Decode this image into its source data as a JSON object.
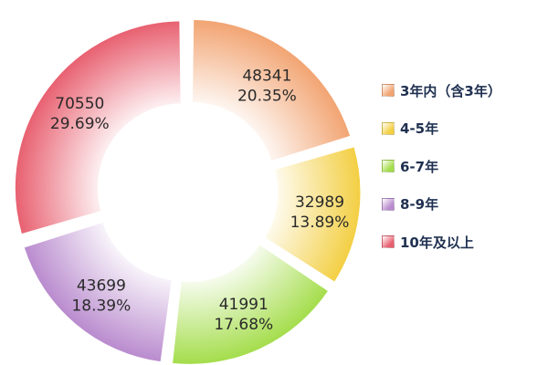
{
  "chart_data": {
    "type": "pie",
    "donut": true,
    "categories": [
      "3年内（含3年）",
      "4-5年",
      "6-7年",
      "8-9年",
      "10年及以上"
    ],
    "values": [
      48341,
      32989,
      41991,
      43699,
      70550
    ],
    "percentages": [
      "20.35%",
      "13.89%",
      "17.68%",
      "18.39%",
      "29.69%"
    ],
    "value_labels": [
      "48341",
      "32989",
      "41991",
      "43699",
      "70550"
    ],
    "colors": [
      "#f2a472",
      "#f3cf43",
      "#a4dd4b",
      "#b98bce",
      "#e86070"
    ],
    "legend_position": "right"
  }
}
